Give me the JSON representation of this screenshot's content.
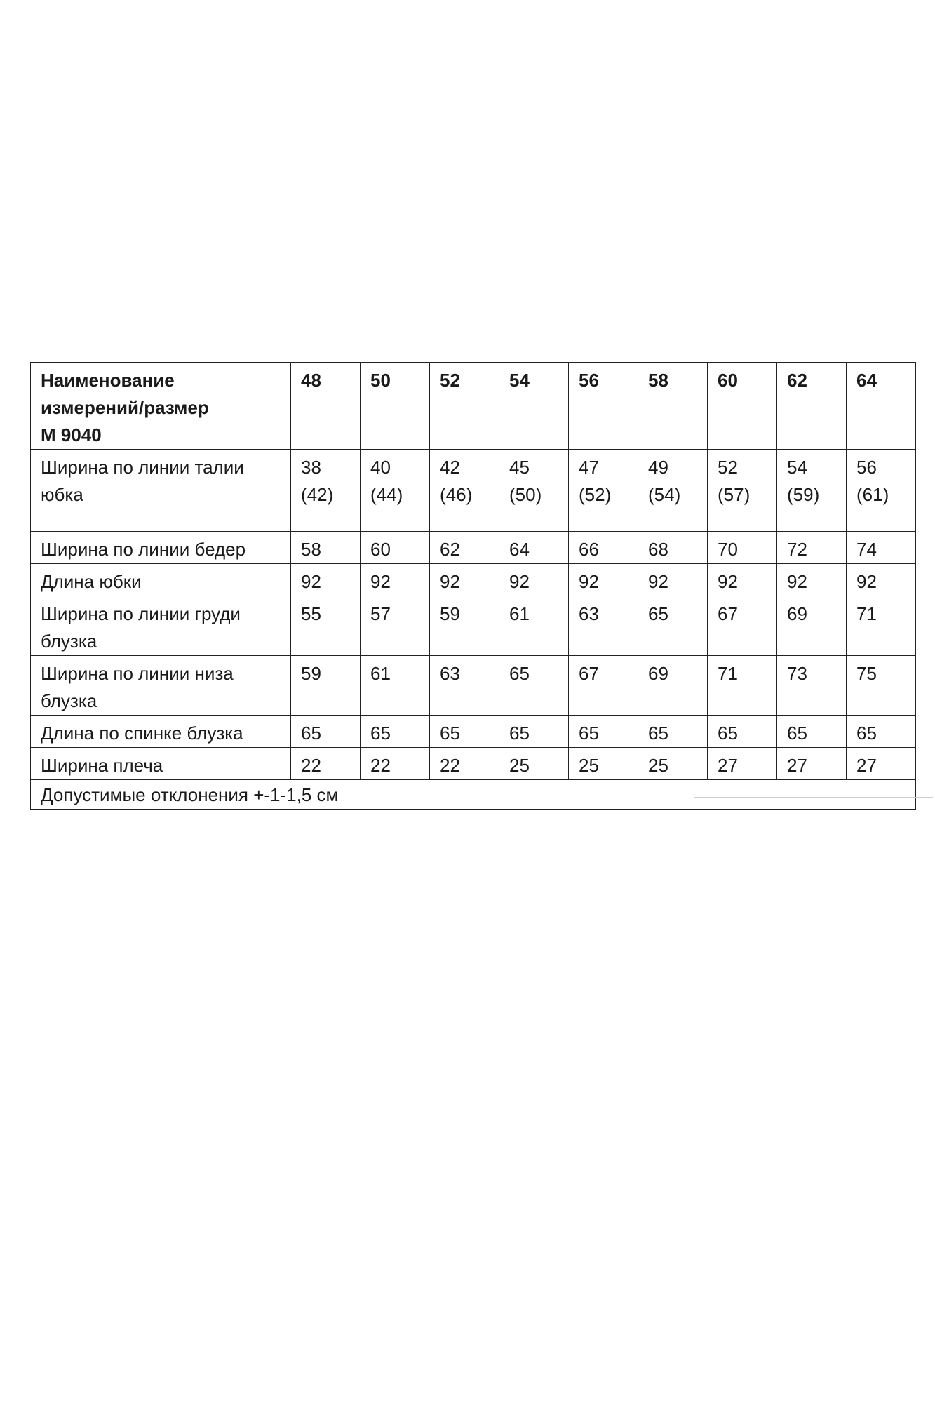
{
  "table": {
    "header_label_lines": [
      "Наименование",
      "измерений/размер",
      "М 9040"
    ],
    "sizes": [
      "48",
      "50",
      "52",
      "54",
      "56",
      "58",
      "60",
      "62",
      "64"
    ],
    "rows": [
      {
        "label_lines": [
          "Ширина по линии талии",
          "юбка"
        ],
        "values": [
          "38\n(42)",
          "40\n(44)",
          "42\n(46)",
          "45\n(50)",
          "47\n(52)",
          "49\n(54)",
          "52\n(57)",
          "54\n(59)",
          "56\n(61)"
        ]
      },
      {
        "label_lines": [
          "Ширина по линии бедер"
        ],
        "values": [
          "58",
          "60",
          "62",
          "64",
          "66",
          "68",
          "70",
          "72",
          "74"
        ]
      },
      {
        "label_lines": [
          "Длина юбки"
        ],
        "values": [
          "92",
          "92",
          "92",
          "92",
          "92",
          "92",
          "92",
          "92",
          "92"
        ]
      },
      {
        "label_lines": [
          "Ширина по линии груди",
          "блузка"
        ],
        "values": [
          "55",
          "57",
          "59",
          "61",
          "63",
          "65",
          "67",
          "69",
          "71"
        ]
      },
      {
        "label_lines": [
          "Ширина по линии низа",
          "блузка"
        ],
        "values": [
          "59",
          "61",
          "63",
          "65",
          "67",
          "69",
          "71",
          "73",
          "75"
        ]
      },
      {
        "label_lines": [
          "Длина по спинке блузка"
        ],
        "values": [
          "65",
          "65",
          "65",
          "65",
          "65",
          "65",
          "65",
          "65",
          "65"
        ]
      },
      {
        "label_lines": [
          "Ширина плеча"
        ],
        "values": [
          "22",
          "22",
          "22",
          "25",
          "25",
          "25",
          "27",
          "27",
          "27"
        ]
      }
    ],
    "note": "Допустимые отклонения +-1-1,5 см"
  }
}
